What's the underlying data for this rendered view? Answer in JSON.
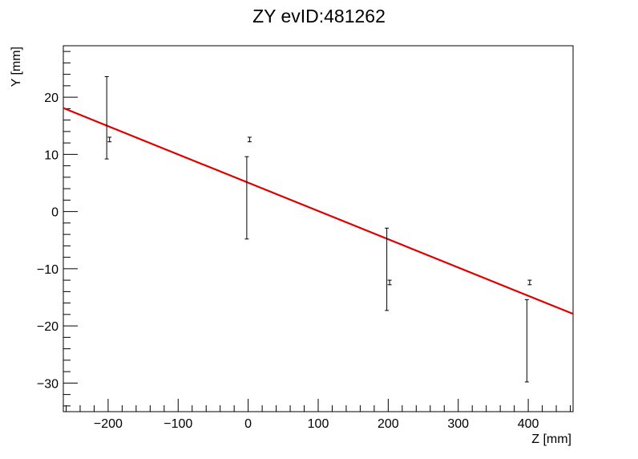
{
  "chart_data": {
    "type": "scatter",
    "title": "ZY evID:481262",
    "xlabel": "Z [mm]",
    "ylabel": "Y [mm]",
    "xlim": [
      -264,
      464
    ],
    "ylim": [
      -35,
      29
    ],
    "x_ticks": [
      -200,
      -100,
      0,
      100,
      200,
      300,
      400
    ],
    "y_ticks": [
      -30,
      -20,
      -10,
      0,
      10,
      20
    ],
    "x_tick_labels": [
      "−200",
      "−100",
      "0",
      "100",
      "200",
      "300",
      "400"
    ],
    "y_tick_labels": [
      "−30",
      "−20",
      "−10",
      "0",
      "10",
      "20"
    ],
    "grid": false,
    "series": [
      {
        "points": [
          {
            "x": -202,
            "y": 16.4,
            "yerr": 7.2
          },
          {
            "x": -2,
            "y": 2.4,
            "yerr": 7.2
          },
          {
            "x": 198,
            "y": -10.1,
            "yerr": 7.2
          },
          {
            "x": 398,
            "y": -22.6,
            "yerr": 7.2
          }
        ]
      },
      {
        "points": [
          {
            "x": -198,
            "y": 12.6,
            "yerr": 0.4
          },
          {
            "x": 2,
            "y": 12.6,
            "yerr": 0.4
          },
          {
            "x": 202,
            "y": -12.4,
            "yerr": 0.4
          },
          {
            "x": 402,
            "y": -12.4,
            "yerr": 0.4
          }
        ]
      }
    ],
    "fit_line": {
      "color": "#e00000",
      "x": [
        -264,
        464
      ],
      "y": [
        18.1,
        -17.9
      ]
    }
  }
}
